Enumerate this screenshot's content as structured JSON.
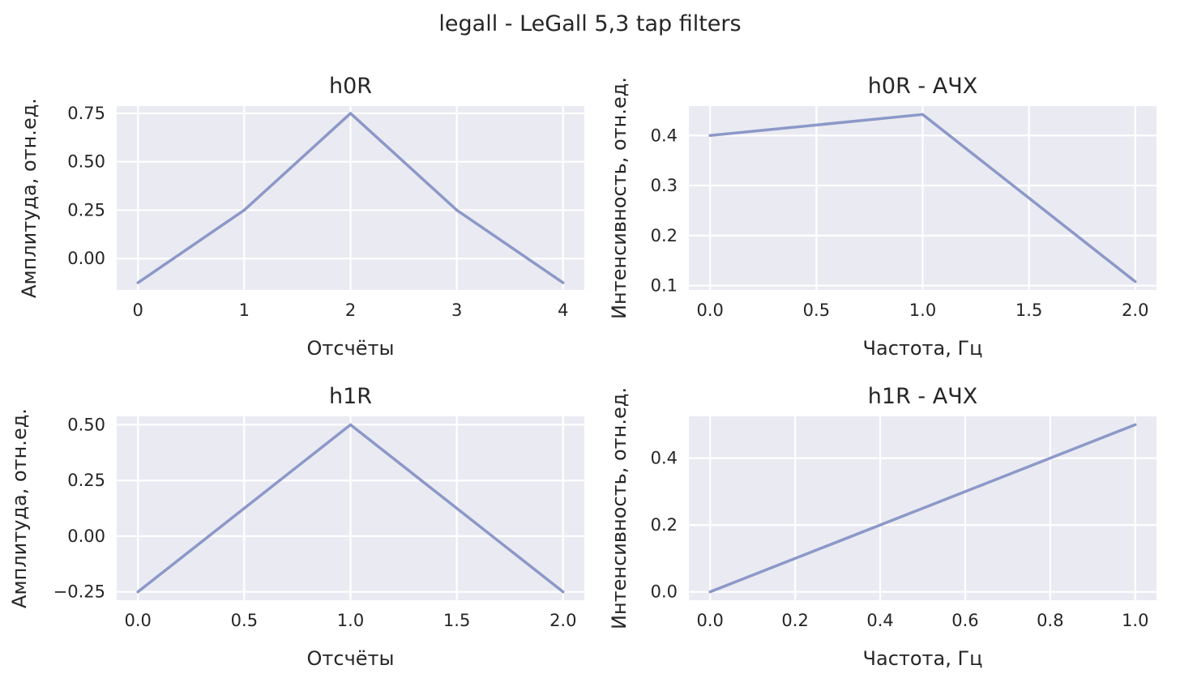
{
  "figure": {
    "title": "legall - LeGall 5,3 tap filters"
  },
  "colors": {
    "background": "#ffffff",
    "plot_background": "#eaeaf2",
    "grid": "#ffffff",
    "series": "#8c98c8",
    "text": "#262626"
  },
  "chart_data": [
    {
      "type": "line",
      "title": "h0R",
      "xlabel": "Отсчёты",
      "ylabel": "Амплитуда, отн.ед.",
      "x": [
        0,
        1,
        2,
        3,
        4
      ],
      "y": [
        -0.125,
        0.25,
        0.75,
        0.25,
        -0.125
      ],
      "xticks": [
        0,
        1,
        2,
        3,
        4
      ],
      "xtick_labels": [
        "0",
        "1",
        "2",
        "3",
        "4"
      ],
      "yticks": [
        0.0,
        0.25,
        0.5,
        0.75
      ],
      "ytick_labels": [
        "0.00",
        "0.25",
        "0.50",
        "0.75"
      ],
      "xlim": [
        -0.2,
        4.2
      ],
      "ylim": [
        -0.1625,
        0.7875
      ],
      "grid": true
    },
    {
      "type": "line",
      "title": "h0R - АЧХ",
      "xlabel": "Частота, Гц",
      "ylabel": "Интенсивность, отн.ед.",
      "x": [
        0.0,
        1.0,
        2.0
      ],
      "y": [
        0.4,
        0.442,
        0.108
      ],
      "xticks": [
        0.0,
        0.5,
        1.0,
        1.5,
        2.0
      ],
      "xtick_labels": [
        "0.0",
        "0.5",
        "1.0",
        "1.5",
        "2.0"
      ],
      "yticks": [
        0.1,
        0.2,
        0.3,
        0.4
      ],
      "ytick_labels": [
        "0.1",
        "0.2",
        "0.3",
        "0.4"
      ],
      "xlim": [
        -0.1,
        2.1
      ],
      "ylim": [
        0.0913,
        0.4587
      ],
      "grid": true
    },
    {
      "type": "line",
      "title": "h1R",
      "xlabel": "Отсчёты",
      "ylabel": "Амплитуда, отн.ед.",
      "x": [
        0.0,
        1.0,
        2.0
      ],
      "y": [
        -0.25,
        0.5,
        -0.25
      ],
      "xticks": [
        0.0,
        0.5,
        1.0,
        1.5,
        2.0
      ],
      "xtick_labels": [
        "0.0",
        "0.5",
        "1.0",
        "1.5",
        "2.0"
      ],
      "yticks": [
        -0.25,
        0.0,
        0.25,
        0.5
      ],
      "ytick_labels": [
        "−0.25",
        "0.00",
        "0.25",
        "0.50"
      ],
      "xlim": [
        -0.1,
        2.1
      ],
      "ylim": [
        -0.2875,
        0.5375
      ],
      "grid": true
    },
    {
      "type": "line",
      "title": "h1R - АЧХ",
      "xlabel": "Частота, Гц",
      "ylabel": "Интенсивность, отн.ед.",
      "x": [
        0.0,
        1.0
      ],
      "y": [
        0.0,
        0.5
      ],
      "xticks": [
        0.0,
        0.2,
        0.4,
        0.6,
        0.8,
        1.0
      ],
      "xtick_labels": [
        "0.0",
        "0.2",
        "0.4",
        "0.6",
        "0.8",
        "1.0"
      ],
      "yticks": [
        0.0,
        0.2,
        0.4
      ],
      "ytick_labels": [
        "0.0",
        "0.2",
        "0.4"
      ],
      "xlim": [
        -0.05,
        1.05
      ],
      "ylim": [
        -0.025,
        0.525
      ],
      "grid": true
    }
  ]
}
